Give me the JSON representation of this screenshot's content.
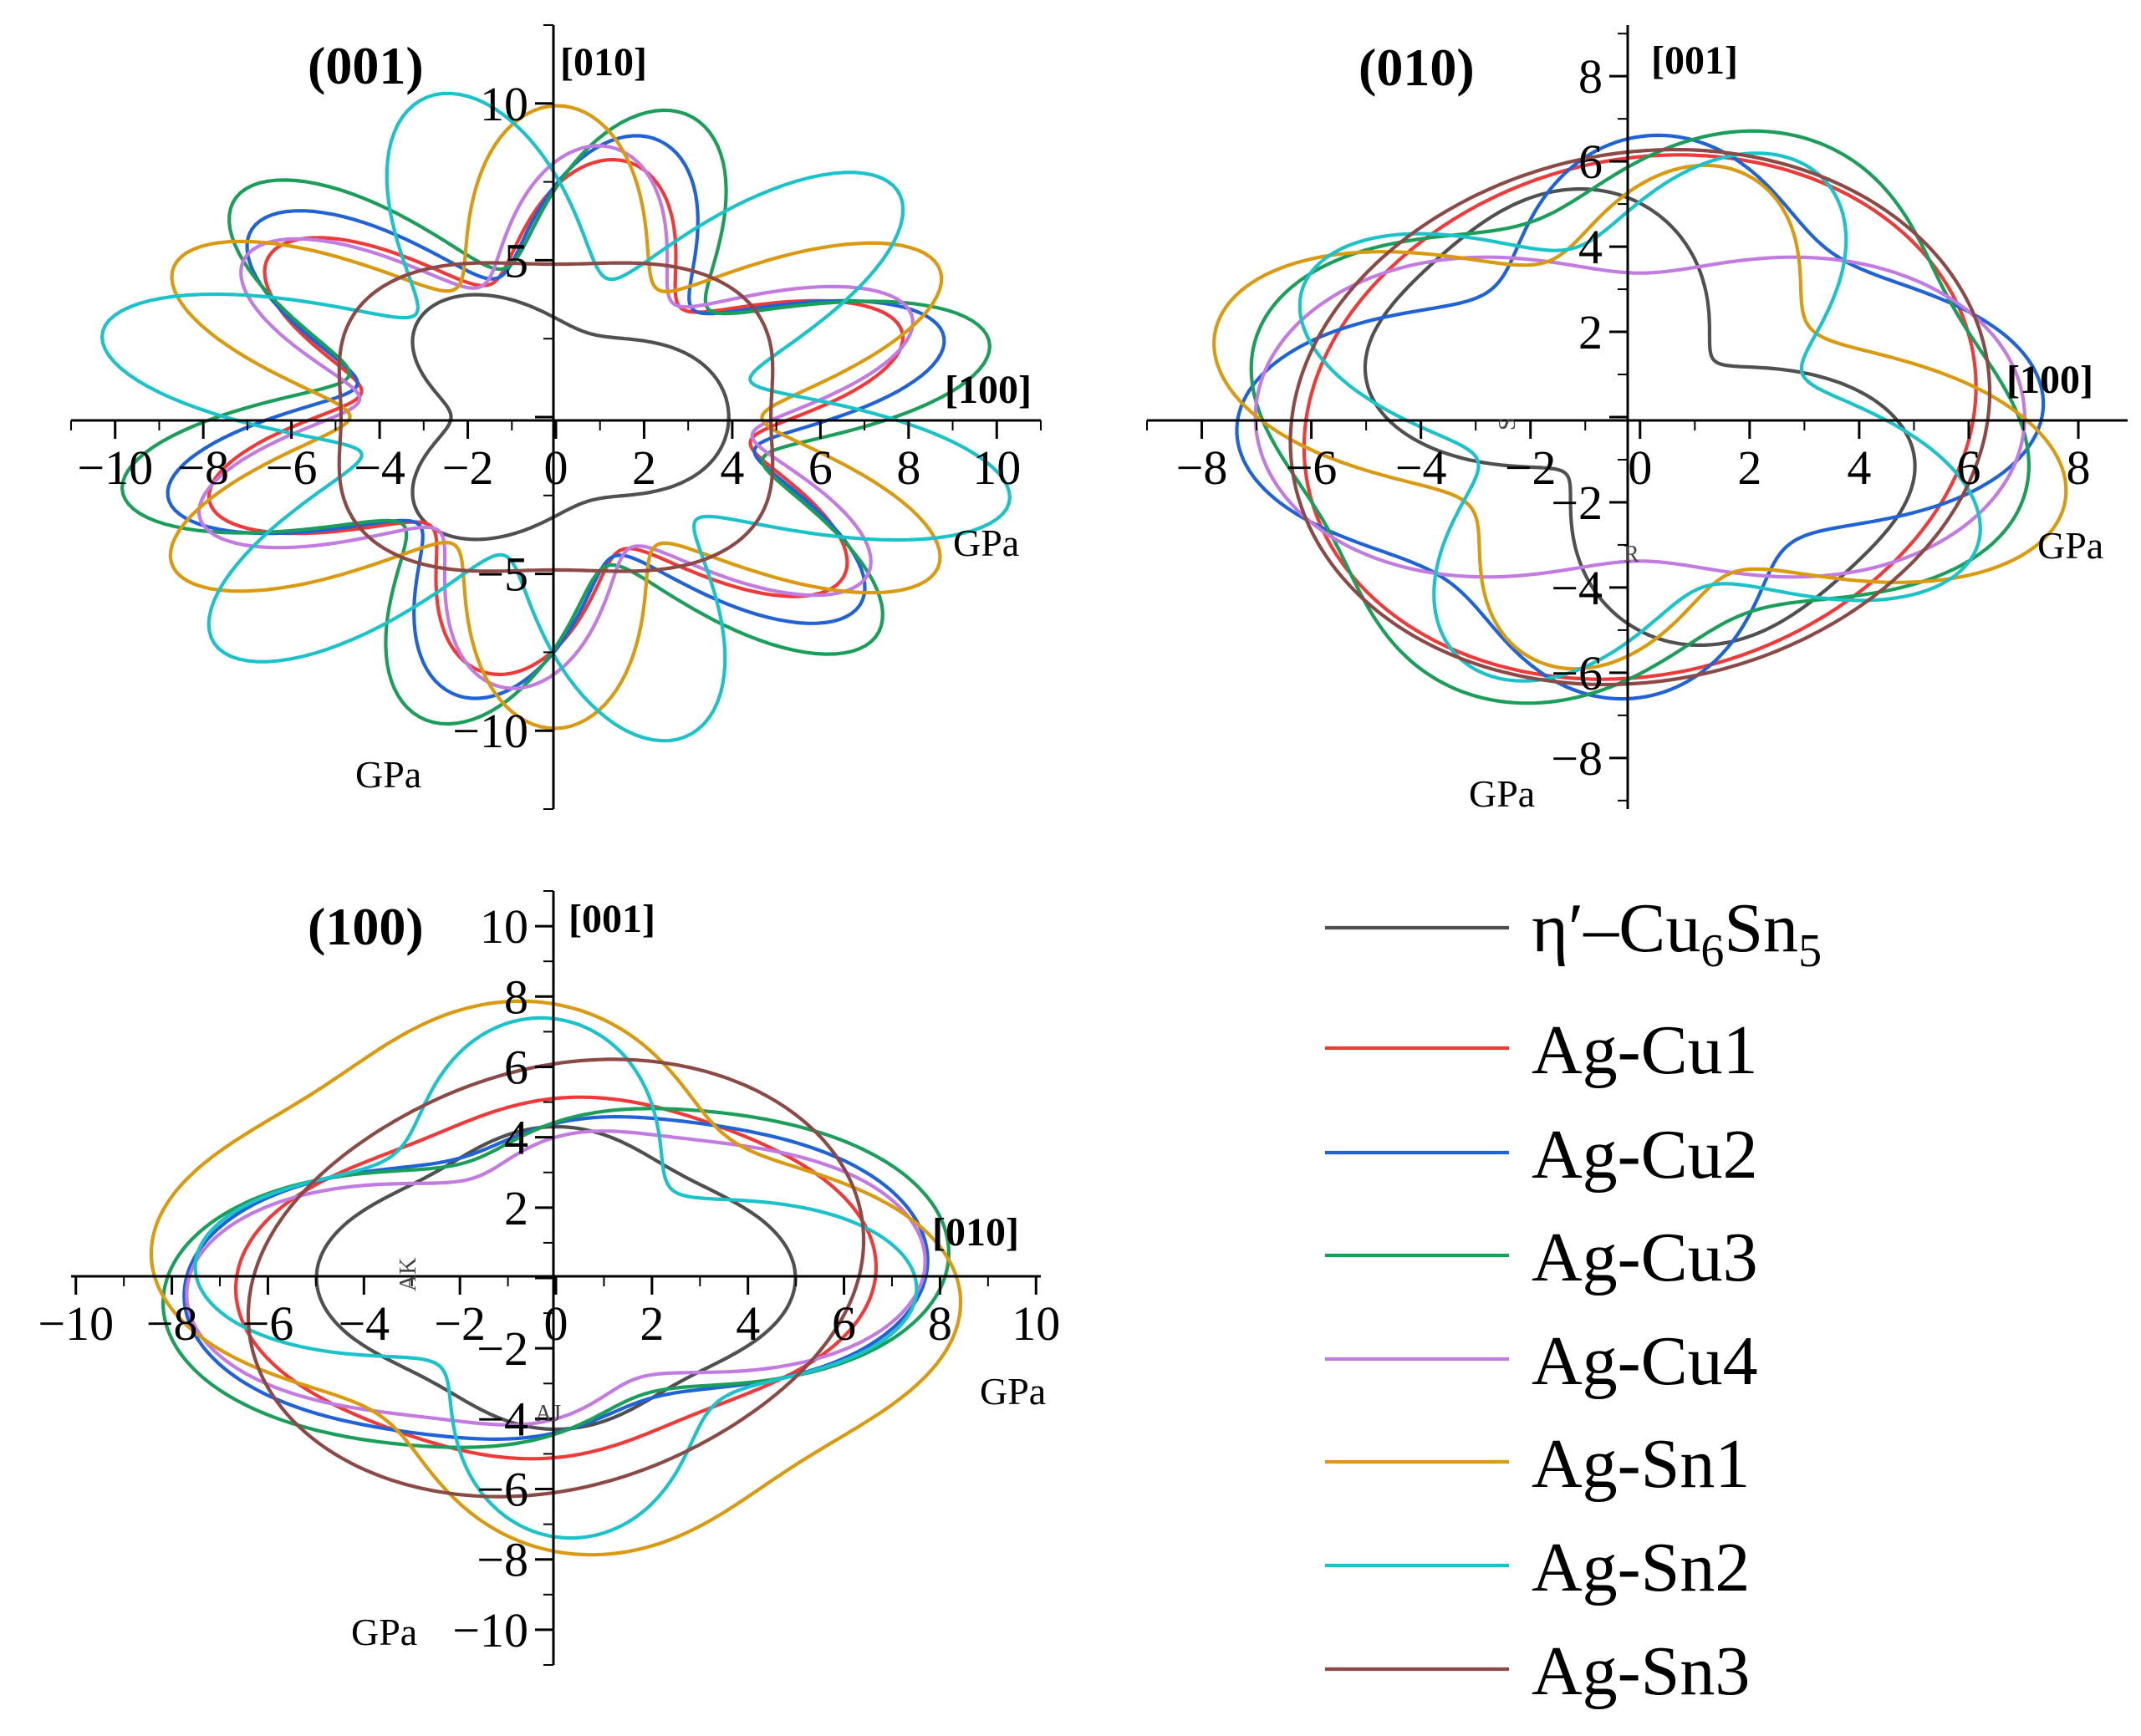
{
  "chart_data": [
    {
      "type": "polar-line",
      "title": "(001)",
      "axis_x_direction": "[100]",
      "axis_y_direction": "[010]",
      "xlabel": "GPa",
      "ylabel": "GPa",
      "xlim": [
        -11,
        11
      ],
      "ylim": [
        -12.5,
        12.5
      ],
      "x_ticks": [
        -10,
        -8,
        -6,
        -4,
        -2,
        0,
        2,
        4,
        6,
        8,
        10
      ],
      "y_ticks": [
        -10,
        -5,
        0,
        5,
        10
      ],
      "grid": false,
      "series": [
        {
          "name": "η′–Cu6Sn5",
          "color": "#505050",
          "shape": {
            "c": 3.5,
            "a": [
              0,
              0,
              0,
              0.22,
              0.1,
              0,
              0
            ],
            "p": [
              0,
              0,
              0,
              0,
              0.785,
              0,
              0
            ]
          }
        },
        {
          "name": "Ag-Cu1",
          "color": "#f03a3a",
          "shape": {
            "c": 6.4,
            "a": [
              0,
              0,
              0,
              0,
              0,
              0,
              0.3
            ],
            "p": [
              0,
              0,
              0,
              0,
              0,
              0,
              0.35
            ]
          }
        },
        {
          "name": "Ag-Cu2",
          "color": "#1f63d6",
          "shape": {
            "c": 6.9,
            "a": [
              0,
              0,
              0,
              0,
              0,
              0,
              0.33
            ],
            "p": [
              0,
              0,
              0,
              0,
              0,
              0,
              0.3
            ]
          }
        },
        {
          "name": "Ag-Cu3",
          "color": "#1b9e5a",
          "shape": {
            "c": 7.5,
            "a": [
              0,
              0,
              0,
              0,
              0,
              0,
              0.35
            ],
            "p": [
              0,
              0,
              0,
              0,
              0,
              0,
              0.25
            ]
          }
        },
        {
          "name": "Ag-Cu4",
          "color": "#c27be0",
          "shape": {
            "c": 6.6,
            "a": [
              0,
              0,
              0,
              0,
              0,
              0,
              0.32
            ],
            "p": [
              0,
              0,
              0,
              0,
              0,
              0,
              0.4
            ]
          }
        },
        {
          "name": "Ag-Sn1",
          "color": "#d99a10",
          "shape": {
            "c": 7.3,
            "a": [
              0,
              0,
              0,
              0,
              0,
              0,
              0.36
            ],
            "p": [
              0,
              0,
              0,
              0,
              0,
              0,
              0.52
            ]
          }
        },
        {
          "name": "Ag-Sn2",
          "color": "#1bc3c9",
          "shape": {
            "c": 7.6,
            "a": [
              0,
              0,
              0,
              0,
              0,
              0,
              0.4
            ],
            "p": [
              0,
              0,
              0,
              0,
              0,
              0,
              0.78
            ]
          }
        },
        {
          "name": "Ag-Sn3",
          "color": "#8b4a45",
          "shape": {
            "c": 5.3,
            "a": [
              0,
              0,
              0,
              0,
              0.08,
              0,
              0
            ],
            "p": [
              0,
              0,
              0,
              0,
              0.785,
              0,
              0
            ]
          }
        }
      ]
    },
    {
      "type": "polar-line",
      "title": "(010)",
      "axis_x_direction": "[100]",
      "axis_y_direction": "[001]",
      "xlabel": "GPa",
      "ylabel": "GPa",
      "xlim": [
        -9.0,
        8.9
      ],
      "ylim": [
        -9.2,
        9.2
      ],
      "x_ticks": [
        -8,
        -6,
        -4,
        -2,
        0,
        2,
        4,
        6,
        8
      ],
      "y_ticks": [
        -8,
        -6,
        -4,
        -2,
        0,
        2,
        4,
        6,
        8
      ],
      "grid": false,
      "annotations": [
        "S",
        "R"
      ],
      "series": [
        {
          "name": "η′–Cu6Sn5",
          "color": "#505050",
          "shape": {
            "c": 4.2,
            "a": [
              0,
              0,
              0.4,
              0,
              0.15,
              0,
              0
            ],
            "p": [
              0,
              0,
              2.3,
              0,
              0,
              0,
              0
            ]
          }
        },
        {
          "name": "Ag-Cu1",
          "color": "#f03a3a",
          "shape": {
            "c": 6.1,
            "a": [
              0,
              0,
              0.06,
              0,
              0,
              0,
              0
            ],
            "p": [
              0,
              0,
              0.8,
              0,
              0,
              0,
              0
            ]
          }
        },
        {
          "name": "Ag-Cu2",
          "color": "#1f63d6",
          "shape": {
            "c": 5.8,
            "a": [
              0,
              0,
              0.12,
              0,
              0.2,
              0,
              0
            ],
            "p": [
              0,
              0,
              0.5,
              0,
              0,
              0,
              0
            ]
          }
        },
        {
          "name": "Ag-Cu3",
          "color": "#1b9e5a",
          "shape": {
            "c": 6.4,
            "a": [
              0,
              0,
              0.1,
              0,
              0.12,
              0,
              0
            ],
            "p": [
              0,
              0,
              0.4,
              0,
              1.2,
              0,
              0
            ]
          }
        },
        {
          "name": "Ag-Cu4",
          "color": "#c27be0",
          "shape": {
            "c": 5.2,
            "a": [
              0,
              0,
              0.35,
              0,
              0,
              0,
              0
            ],
            "p": [
              0,
              0,
              0,
              0,
              0,
              0,
              0
            ]
          }
        },
        {
          "name": "Ag-Sn1",
          "color": "#d99a10",
          "shape": {
            "c": 5.5,
            "a": [
              0,
              0,
              0.18,
              0,
              0.28,
              0,
              0
            ],
            "p": [
              0,
              0,
              2.8,
              0,
              1.3,
              0,
              0
            ]
          }
        },
        {
          "name": "Ag-Sn2",
          "color": "#1bc3c9",
          "shape": {
            "c": 5.2,
            "a": [
              0,
              0,
              0.1,
              0,
              0.3,
              0,
              0
            ],
            "p": [
              0,
              0,
              2.0,
              0,
              1.1,
              0,
              0
            ]
          }
        },
        {
          "name": "Ag-Sn3",
          "color": "#8b4a45",
          "shape": {
            "c": 6.3,
            "a": [
              0,
              0,
              0.05,
              0,
              0,
              0,
              0
            ],
            "p": [
              0,
              0,
              0.7,
              0,
              0,
              0,
              0
            ]
          }
        }
      ]
    },
    {
      "type": "polar-line",
      "title": "(100)",
      "axis_x_direction": "[010]",
      "axis_y_direction": "[001]",
      "xlabel": "GPa",
      "ylabel": "GPa",
      "xlim": [
        -10.1,
        10.1
      ],
      "ylim": [
        -11.0,
        11.0
      ],
      "x_ticks": [
        -10,
        -8,
        -6,
        -4,
        -2,
        0,
        2,
        4,
        6,
        8,
        10
      ],
      "y_ticks": [
        -10,
        -8,
        -6,
        -4,
        -2,
        0,
        2,
        4,
        6,
        8,
        10
      ],
      "grid": false,
      "annotations": [
        "AK",
        "AJ"
      ],
      "series": [
        {
          "name": "η′–Cu6Sn5",
          "color": "#505050",
          "shape": {
            "c": 4.3,
            "a": [
              0,
              0,
              0.08,
              0,
              0.08,
              0,
              0
            ],
            "p": [
              0,
              0,
              0.0,
              0,
              0,
              0,
              0
            ]
          }
        },
        {
          "name": "Ag-Cu1",
          "color": "#f03a3a",
          "shape": {
            "c": 5.6,
            "a": [
              0,
              0,
              0.15,
              0,
              0.05,
              0,
              0
            ],
            "p": [
              0,
              0,
              0.2,
              0,
              0,
              0,
              0
            ]
          }
        },
        {
          "name": "Ag-Cu2",
          "color": "#1f63d6",
          "shape": {
            "c": 5.6,
            "a": [
              0,
              0,
              0.32,
              0,
              0.08,
              0,
              0
            ],
            "p": [
              0,
              0,
              0.2,
              0,
              0,
              0,
              0
            ]
          }
        },
        {
          "name": "Ag-Cu3",
          "color": "#1b9e5a",
          "shape": {
            "c": 5.8,
            "a": [
              0,
              0,
              0.36,
              0,
              0.08,
              0,
              0
            ],
            "p": [
              0,
              0,
              0.25,
              0,
              0,
              0,
              0
            ]
          }
        },
        {
          "name": "Ag-Cu4",
          "color": "#c27be0",
          "shape": {
            "c": 5.2,
            "a": [
              0,
              0,
              0.38,
              0,
              0.12,
              0,
              0
            ],
            "p": [
              0,
              0,
              0.2,
              0,
              0,
              0,
              0
            ]
          }
        },
        {
          "name": "Ag-Sn1",
          "color": "#d99a10",
          "shape": {
            "c": 7.2,
            "a": [
              0,
              0,
              0.14,
              0,
              0.12,
              0,
              0
            ],
            "p": [
              0,
              0,
              2.5,
              0,
              0,
              0,
              0
            ]
          }
        },
        {
          "name": "Ag-Sn2",
          "color": "#1bc3c9",
          "shape": {
            "c": 5.8,
            "a": [
              0,
              0,
              0.12,
              0,
              0.28,
              0,
              0
            ],
            "p": [
              0,
              0,
              2.4,
              0,
              0,
              0,
              0
            ]
          }
        },
        {
          "name": "Ag-Sn3",
          "color": "#8b4a45",
          "shape": {
            "c": 6.2,
            "a": [
              0,
              0,
              0.1,
              0,
              0,
              0,
              0
            ],
            "p": [
              0,
              0,
              0.7,
              0,
              0,
              0,
              0
            ]
          }
        }
      ]
    }
  ],
  "legend": {
    "placement": "bottom-right",
    "items": [
      {
        "label_main": "η′–Cu",
        "sub1": "6",
        "mid": "Sn",
        "sub2": "5",
        "color": "#505050"
      },
      {
        "label": "Ag-Cu1",
        "color": "#f03a3a"
      },
      {
        "label": "Ag-Cu2",
        "color": "#1f63d6"
      },
      {
        "label": "Ag-Cu3",
        "color": "#1b9e5a"
      },
      {
        "label": "Ag-Cu4",
        "color": "#c27be0"
      },
      {
        "label": "Ag-Sn1",
        "color": "#d99a10"
      },
      {
        "label": "Ag-Sn2",
        "color": "#1bc3c9"
      },
      {
        "label": "Ag-Sn3",
        "color": "#8b4a45"
      }
    ]
  }
}
